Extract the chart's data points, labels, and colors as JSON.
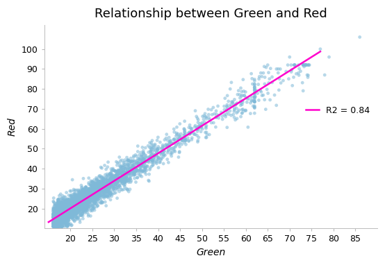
{
  "title": "Relationship between Green and Red",
  "xlabel": "Green",
  "ylabel": "Red",
  "scatter_color": "#7fb9d8",
  "scatter_alpha": 0.55,
  "scatter_size": 12,
  "scatter_edgecolor": "none",
  "line_color": "#ff00cc",
  "line_label": "R2 = 0.84",
  "xlim": [
    14,
    90
  ],
  "ylim": [
    10,
    112
  ],
  "xticks": [
    20,
    25,
    30,
    35,
    40,
    45,
    50,
    55,
    60,
    65,
    70,
    75,
    80,
    85
  ],
  "yticks": [
    20,
    30,
    40,
    50,
    60,
    70,
    80,
    90,
    100
  ],
  "seed": 42,
  "n_main": 3000,
  "slope": 1.38,
  "intercept": -7.5,
  "noise_std": 3.5,
  "title_fontsize": 13,
  "axis_label_fontsize": 10,
  "tick_fontsize": 9,
  "legend_fontsize": 9,
  "background_color": "#ffffff",
  "spine_color": "#bbbbbb",
  "line_x_start": 15,
  "line_x_end": 77
}
